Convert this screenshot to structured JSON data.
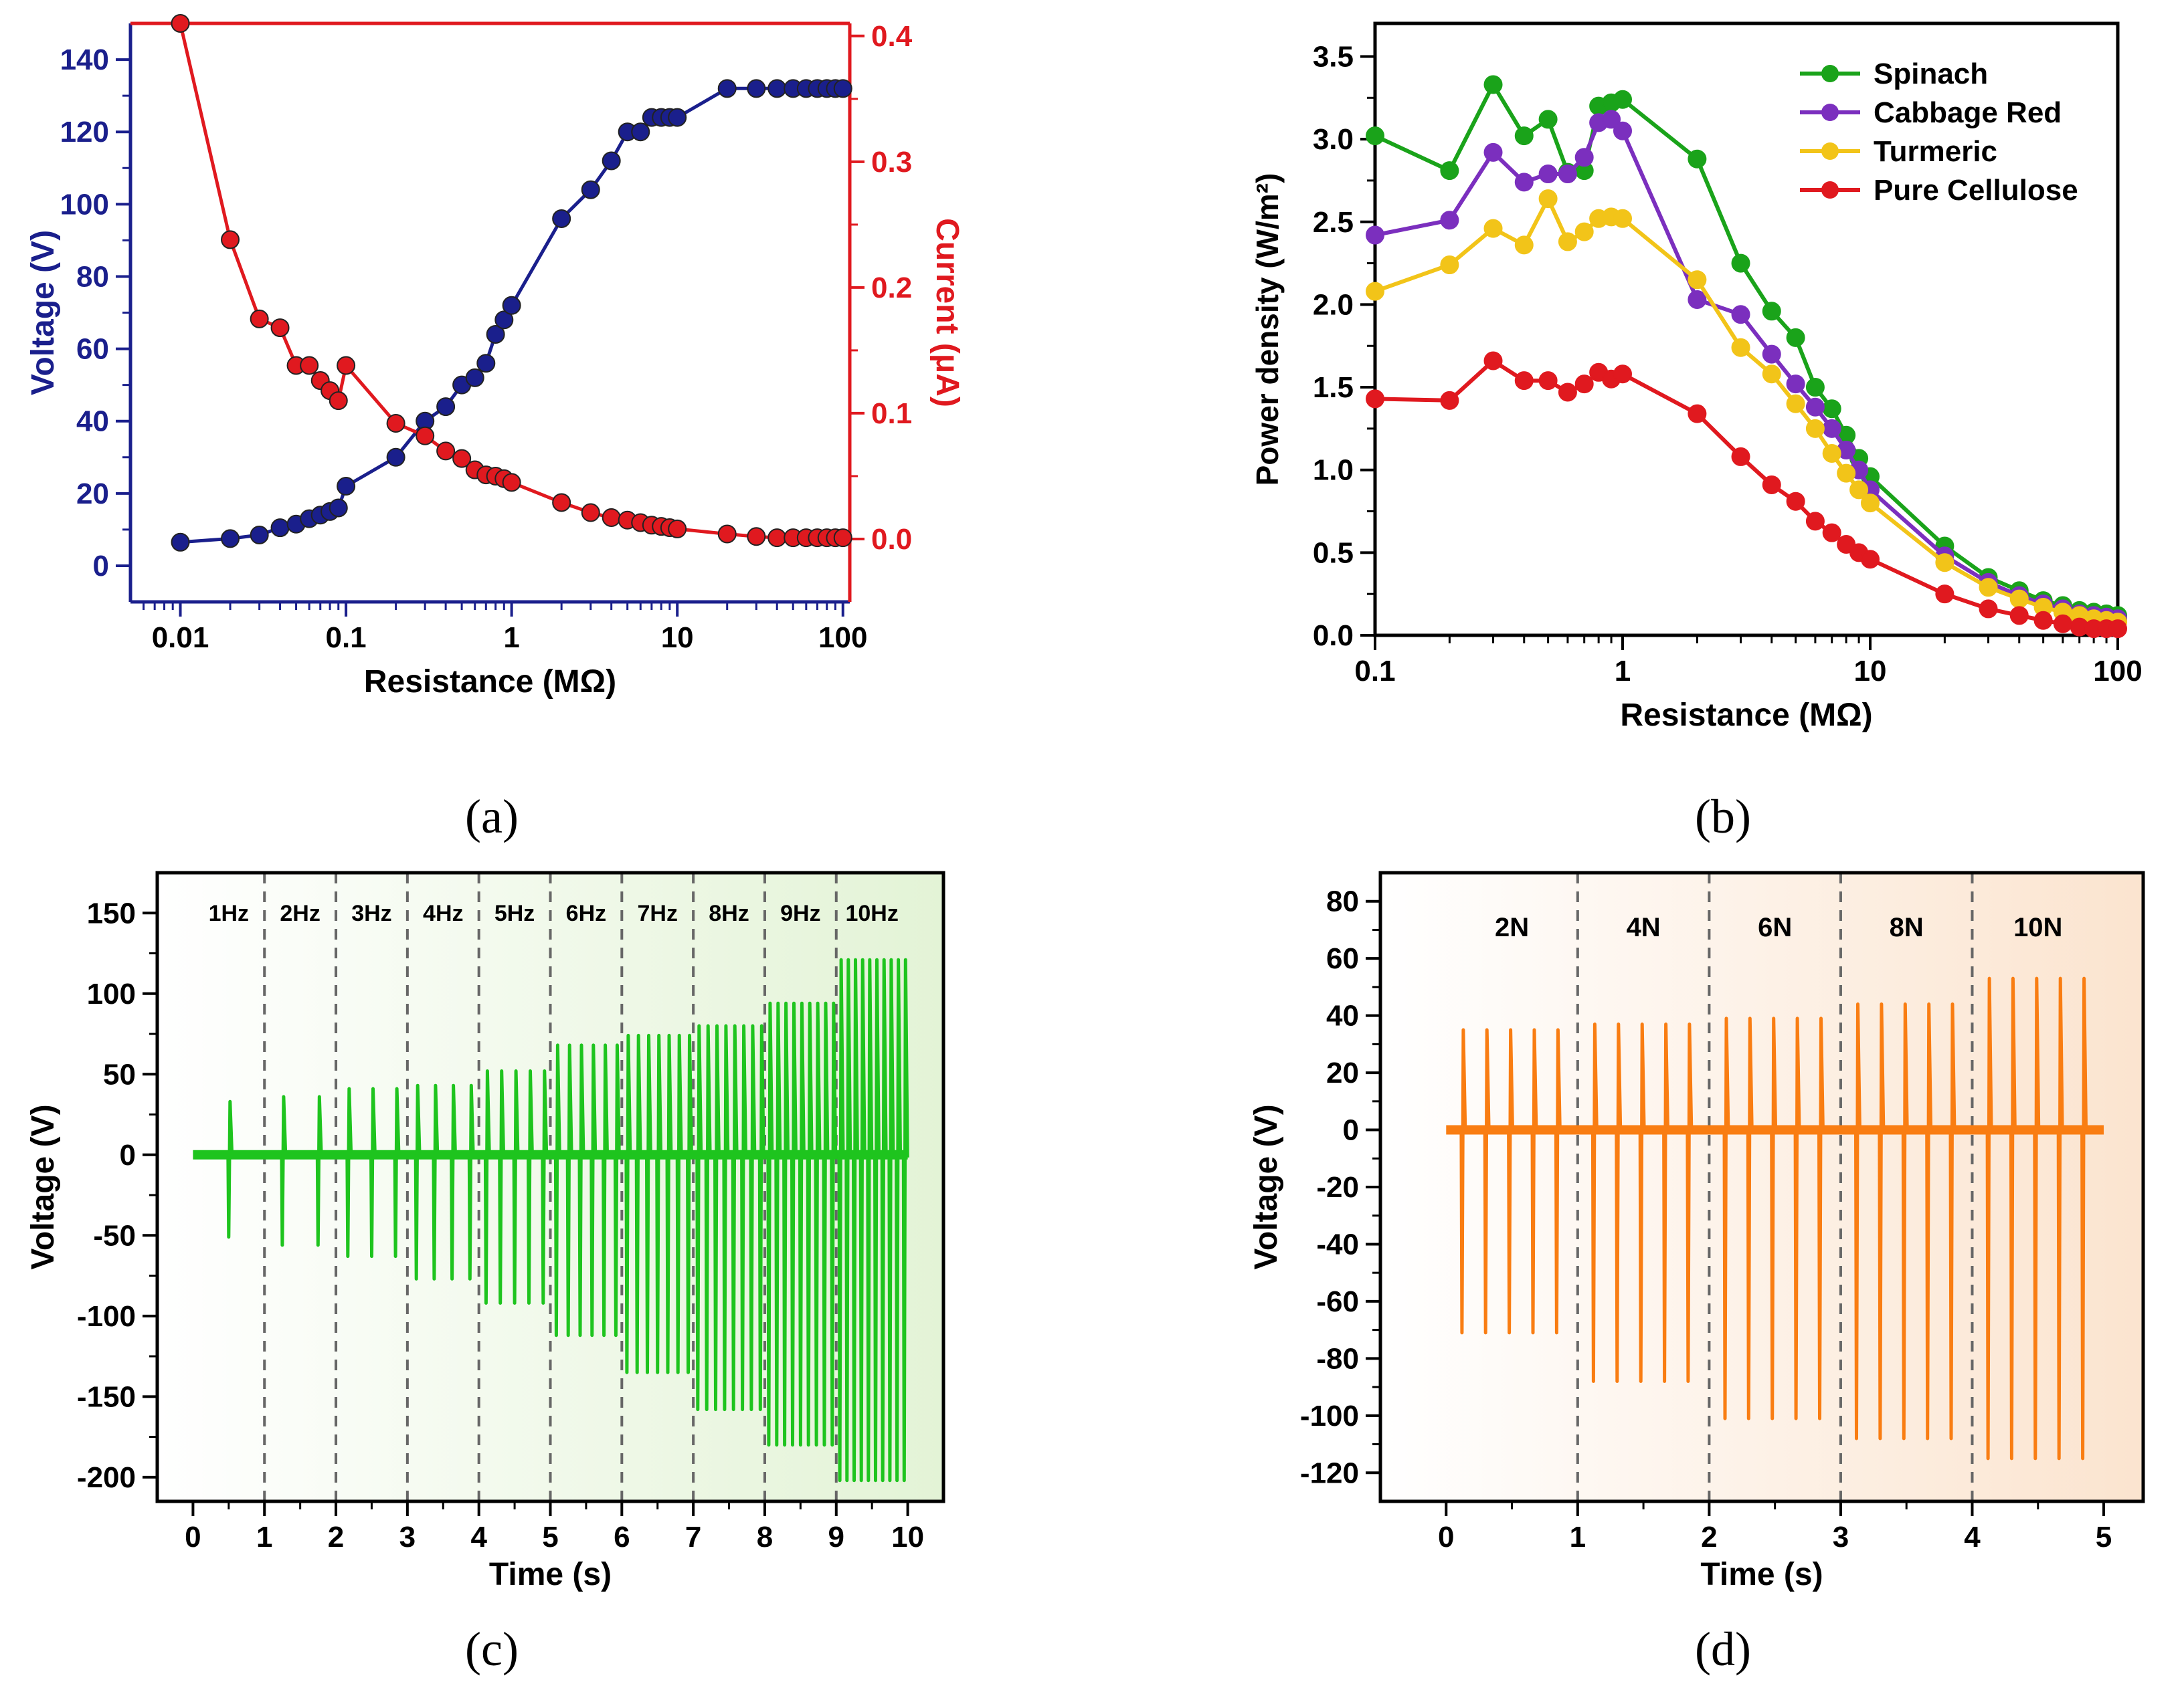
{
  "figure": {
    "labels": [
      "(a)",
      "(b)",
      "(c)",
      "(d)"
    ]
  },
  "chart_data": [
    {
      "id": "a",
      "type": "line",
      "xlabel": "Resistance (MΩ)",
      "ylabel_left": "Voltage (V)",
      "ylabel_right": "Current (μA)",
      "xscale": "log",
      "xlim": [
        0.005,
        110
      ],
      "xticks": [
        0.01,
        0.1,
        1,
        10,
        100
      ],
      "xtick_labels": [
        "0.01",
        "0.1",
        "1",
        "10",
        "100"
      ],
      "ylim_left": [
        -10,
        150
      ],
      "yticks_left": [
        0,
        20,
        40,
        60,
        80,
        100,
        120,
        140
      ],
      "ytick_labels_left": [
        "0",
        "20",
        "40",
        "60",
        "80",
        "100",
        "120",
        "140"
      ],
      "ylim_right": [
        -0.05,
        0.41
      ],
      "yticks_right": [
        0.0,
        0.1,
        0.2,
        0.3,
        0.4
      ],
      "ytick_labels_right": [
        "0.0",
        "0.1",
        "0.2",
        "0.3",
        "0.4"
      ],
      "colors": {
        "voltage": "#1a1f8c",
        "current": "#e0191f"
      },
      "series": [
        {
          "name": "Voltage",
          "axis": "left",
          "x": [
            0.01,
            0.02,
            0.03,
            0.04,
            0.05,
            0.06,
            0.07,
            0.08,
            0.09,
            0.1,
            0.2,
            0.3,
            0.4,
            0.5,
            0.6,
            0.7,
            0.8,
            0.9,
            1,
            2,
            3,
            4,
            5,
            6,
            7,
            8,
            9,
            10,
            20,
            30,
            40,
            50,
            60,
            70,
            80,
            90,
            100
          ],
          "values": [
            6.5,
            7.5,
            8.5,
            10.5,
            11.5,
            13,
            14,
            15,
            16,
            22,
            30,
            40,
            44,
            50,
            52,
            56,
            64,
            68,
            72,
            96,
            104,
            112,
            120,
            120,
            124,
            124,
            124,
            124,
            132,
            132,
            132,
            132,
            132,
            132,
            132,
            132,
            132
          ]
        },
        {
          "name": "Current",
          "axis": "right",
          "x": [
            0.01,
            0.02,
            0.03,
            0.04,
            0.05,
            0.06,
            0.07,
            0.08,
            0.09,
            0.1,
            0.2,
            0.3,
            0.4,
            0.5,
            0.6,
            0.7,
            0.8,
            0.9,
            1,
            2,
            3,
            4,
            5,
            6,
            7,
            8,
            9,
            10,
            20,
            30,
            40,
            50,
            60,
            70,
            80,
            90,
            100
          ],
          "values": [
            0.41,
            0.238,
            0.175,
            0.168,
            0.138,
            0.138,
            0.126,
            0.118,
            0.11,
            0.138,
            0.092,
            0.082,
            0.07,
            0.064,
            0.055,
            0.051,
            0.05,
            0.048,
            0.045,
            0.029,
            0.021,
            0.017,
            0.015,
            0.013,
            0.011,
            0.01,
            0.009,
            0.008,
            0.004,
            0.002,
            0.001,
            0.001,
            0.001,
            0.001,
            0.001,
            0.001,
            0.001
          ]
        }
      ]
    },
    {
      "id": "b",
      "type": "line",
      "xlabel": "Resistance (MΩ)",
      "ylabel": "Power density (W/m²)",
      "xscale": "log",
      "xlim": [
        0.1,
        100
      ],
      "xticks": [
        0.1,
        1,
        10,
        100
      ],
      "xtick_labels": [
        "0.1",
        "1",
        "10",
        "100"
      ],
      "ylim": [
        0,
        3.7
      ],
      "yticks": [
        0.0,
        0.5,
        1.0,
        1.5,
        2.0,
        2.5,
        3.0,
        3.5
      ],
      "ytick_labels": [
        "0.0",
        "0.5",
        "1.0",
        "1.5",
        "2.0",
        "2.5",
        "3.0",
        "3.5"
      ],
      "legend_position": "top-right",
      "x": [
        0.1,
        0.2,
        0.3,
        0.4,
        0.5,
        0.6,
        0.7,
        0.8,
        0.9,
        1,
        2,
        3,
        4,
        5,
        6,
        7,
        8,
        9,
        10,
        20,
        30,
        40,
        50,
        60,
        70,
        80,
        90,
        100
      ],
      "series": [
        {
          "name": "Spinach",
          "color": "#1aa31a",
          "values": [
            3.02,
            2.81,
            3.33,
            3.02,
            3.12,
            2.8,
            2.81,
            3.2,
            3.22,
            3.24,
            2.88,
            2.25,
            1.96,
            1.8,
            1.5,
            1.37,
            1.21,
            1.07,
            0.96,
            0.54,
            0.35,
            0.27,
            0.21,
            0.18,
            0.15,
            0.14,
            0.13,
            0.12
          ]
        },
        {
          "name": "Cabbage Red",
          "color": "#7b2fbe",
          "values": [
            2.42,
            2.51,
            2.92,
            2.74,
            2.79,
            2.79,
            2.89,
            3.1,
            3.12,
            3.05,
            2.03,
            1.94,
            1.7,
            1.52,
            1.38,
            1.25,
            1.12,
            1.0,
            0.88,
            0.48,
            0.32,
            0.24,
            0.19,
            0.16,
            0.13,
            0.12,
            0.11,
            0.1
          ]
        },
        {
          "name": "Turmeric",
          "color": "#f2c419",
          "values": [
            2.08,
            2.24,
            2.46,
            2.36,
            2.64,
            2.38,
            2.44,
            2.52,
            2.53,
            2.52,
            2.15,
            1.74,
            1.58,
            1.4,
            1.25,
            1.1,
            0.98,
            0.88,
            0.8,
            0.44,
            0.29,
            0.22,
            0.17,
            0.14,
            0.12,
            0.1,
            0.09,
            0.08
          ]
        },
        {
          "name": "Pure Cellulose",
          "color": "#e0191f",
          "values": [
            1.43,
            1.42,
            1.66,
            1.54,
            1.54,
            1.47,
            1.52,
            1.59,
            1.55,
            1.58,
            1.34,
            1.08,
            0.91,
            0.81,
            0.69,
            0.62,
            0.55,
            0.5,
            0.46,
            0.25,
            0.16,
            0.12,
            0.09,
            0.07,
            0.05,
            0.04,
            0.04,
            0.04
          ]
        }
      ]
    },
    {
      "id": "c",
      "type": "line",
      "xlabel": "Time (s)",
      "ylabel": "Voltage (V)",
      "xlim": [
        -0.5,
        10.5
      ],
      "xticks": [
        0,
        1,
        2,
        3,
        4,
        5,
        6,
        7,
        8,
        9,
        10
      ],
      "xtick_labels": [
        "0",
        "1",
        "2",
        "3",
        "4",
        "5",
        "6",
        "7",
        "8",
        "9",
        "10"
      ],
      "ylim": [
        -215,
        175
      ],
      "yticks": [
        -200,
        -150,
        -100,
        -50,
        0,
        50,
        100,
        150
      ],
      "ytick_labels": [
        "-200",
        "-150",
        "-100",
        "-50",
        "0",
        "50",
        "100",
        "150"
      ],
      "color": "#1ec41e",
      "region_labels": [
        "1Hz",
        "2Hz",
        "3Hz",
        "4Hz",
        "5Hz",
        "6Hz",
        "7Hz",
        "8Hz",
        "9Hz",
        "10Hz"
      ],
      "frequencies_hz": [
        1,
        2,
        3,
        4,
        5,
        6,
        7,
        8,
        9,
        10
      ],
      "peak_positive_v": [
        33,
        36,
        41,
        43,
        52,
        68,
        74,
        80,
        94,
        121
      ],
      "peak_negative_v": [
        -51,
        -56,
        -63,
        -77,
        -92,
        -112,
        -135,
        -158,
        -180,
        -202
      ]
    },
    {
      "id": "d",
      "type": "line",
      "xlabel": "Time (s)",
      "ylabel": "Voltage (V)",
      "xlim": [
        -0.5,
        5.3
      ],
      "xticks": [
        0,
        1,
        2,
        3,
        4,
        5
      ],
      "xtick_labels": [
        "0",
        "1",
        "2",
        "3",
        "4",
        "5"
      ],
      "ylim": [
        -130,
        90
      ],
      "yticks": [
        -120,
        -100,
        -80,
        -60,
        -40,
        -20,
        0,
        20,
        40,
        60,
        80
      ],
      "ytick_labels": [
        "-120",
        "-100",
        "-80",
        "-60",
        "-40",
        "-20",
        "0",
        "20",
        "40",
        "60",
        "80"
      ],
      "color": "#f97d12",
      "region_labels": [
        "2N",
        "4N",
        "6N",
        "8N",
        "10N"
      ],
      "forces_n": [
        2,
        4,
        6,
        8,
        10
      ],
      "peak_positive_v": [
        35,
        37,
        39,
        44,
        53
      ],
      "peak_negative_v": [
        -71,
        -88,
        -101,
        -108,
        -115
      ]
    }
  ]
}
